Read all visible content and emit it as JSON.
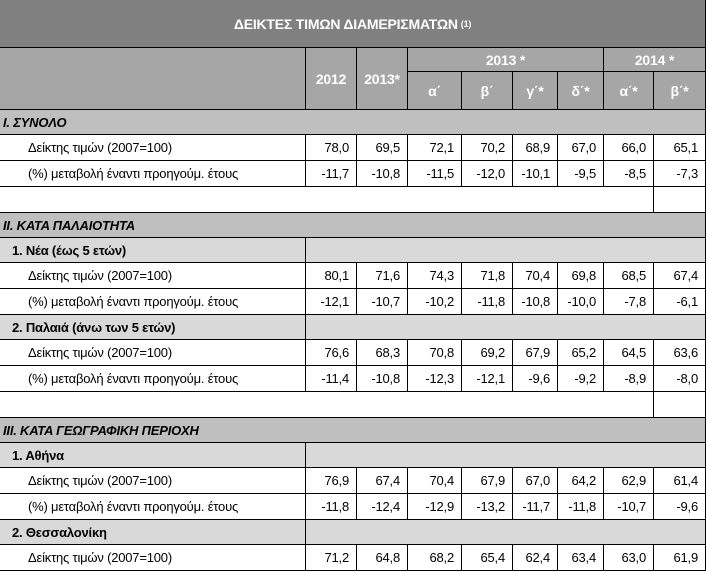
{
  "title": "ΔΕΙΚΤΕΣ ΤΙΜΩΝ ΔΙΑΜΕΡΙΣΜΑΤΩΝ",
  "title_note": "(1)",
  "header": {
    "columns": [
      "2012",
      "2013*"
    ],
    "groups": [
      {
        "label": "2013 *",
        "subs": [
          "α΄",
          "β΄",
          "γ΄*",
          "δ΄*"
        ]
      },
      {
        "label": "2014 *",
        "subs": [
          "α΄*",
          "β΄*"
        ]
      }
    ]
  },
  "sections": [
    {
      "title": "I. ΣΥΝΟΛΟ",
      "rows": [
        {
          "label": "Δείκτης τιμών (2007=100)",
          "values": [
            "78,0",
            "69,5",
            "72,1",
            "70,2",
            "68,9",
            "67,0",
            "66,0",
            "65,1"
          ]
        },
        {
          "label": "(%) μεταβολή έναντι προηγούμ. έτους",
          "values": [
            "-11,7",
            "-10,8",
            "-11,5",
            "-12,0",
            "-10,1",
            "-9,5",
            "-8,5",
            "-7,3"
          ]
        }
      ]
    },
    {
      "title": "II. ΚΑΤΑ ΠΑΛΑΙΟΤΗΤΑ",
      "groups": [
        {
          "title": "1. Νέα (έως 5 ετών)",
          "rows": [
            {
              "label": "Δείκτης τιμών (2007=100)",
              "values": [
                "80,1",
                "71,6",
                "74,3",
                "71,8",
                "70,4",
                "69,8",
                "68,5",
                "67,4"
              ]
            },
            {
              "label": "(%) μεταβολή έναντι προηγούμ. έτους",
              "values": [
                "-12,1",
                "-10,7",
                "-10,2",
                "-11,8",
                "-10,8",
                "-10,0",
                "-7,8",
                "-6,1"
              ]
            }
          ]
        },
        {
          "title": "2. Παλαιά (άνω των 5 ετών)",
          "rows": [
            {
              "label": "Δείκτης τιμών (2007=100)",
              "values": [
                "76,6",
                "68,3",
                "70,8",
                "69,2",
                "67,9",
                "65,2",
                "64,5",
                "63,6"
              ]
            },
            {
              "label": "(%) μεταβολή έναντι προηγούμ. έτους",
              "values": [
                "-11,4",
                "-10,8",
                "-12,3",
                "-12,1",
                "-9,6",
                "-9,2",
                "-8,9",
                "-8,0"
              ]
            }
          ]
        }
      ]
    },
    {
      "title": "III. ΚΑΤΑ ΓΕΩΓΡΑΦΙΚΗ ΠΕΡΙΟΧΗ",
      "groups": [
        {
          "title": "1. Αθήνα",
          "rows": [
            {
              "label": "Δείκτης τιμών (2007=100)",
              "values": [
                "76,9",
                "67,4",
                "70,4",
                "67,9",
                "67,0",
                "64,2",
                "62,9",
                "61,4"
              ]
            },
            {
              "label": "(%) μεταβολή έναντι προηγούμ. έτους",
              "values": [
                "-11,8",
                "-12,4",
                "-12,9",
                "-13,2",
                "-11,7",
                "-11,8",
                "-10,7",
                "-9,6"
              ]
            }
          ]
        },
        {
          "title": "2. Θεσσαλονίκη",
          "rows": [
            {
              "label": "Δείκτης τιμών (2007=100)",
              "values": [
                "71,2",
                "64,8",
                "68,2",
                "65,4",
                "62,4",
                "63,4",
                "63,0",
                "61,9"
              ]
            }
          ]
        }
      ]
    }
  ]
}
